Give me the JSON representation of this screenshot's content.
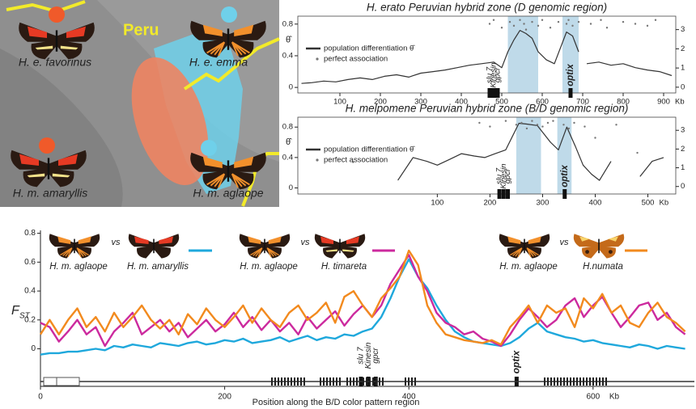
{
  "map": {
    "region_label": "Peru",
    "butterflies": [
      "H. e. favorinus",
      "H. e. emma",
      "H. m. amaryllis",
      "H. m. aglaope"
    ]
  },
  "chart_data": [
    {
      "type": "line",
      "title": "H. erato Peruvian hybrid zone (D genomic region)",
      "y_label": "θ̂",
      "x_unit": "Kb",
      "xlim": [
        -4,
        930
      ],
      "xticks": [
        100,
        200,
        300,
        400,
        500,
        600,
        700,
        800,
        900
      ],
      "ylim": [
        -0.07,
        0.9
      ],
      "yticks": [
        0,
        0.4,
        0.8
      ],
      "y2lim": [
        -0.3,
        3.7
      ],
      "y2ticks": [
        0,
        1,
        2,
        3
      ],
      "shaded_regions": [
        [
          515,
          590
        ],
        [
          650,
          690
        ]
      ],
      "shade_color": "#a9cde1",
      "genes": [
        {
          "label": "slu 7",
          "x": 470,
          "color": "#222222"
        },
        {
          "label": "Kinesin",
          "x": 480,
          "color": "#c2185b"
        },
        {
          "label": "gpcr",
          "x": 490,
          "color": "#222222"
        },
        {
          "label": "optix",
          "x": 670,
          "color": "#e0202c"
        }
      ],
      "series": [
        {
          "name": "population differentiation θ̂",
          "color": "#333333",
          "x": [
            5,
            30,
            60,
            90,
            120,
            150,
            180,
            210,
            240,
            270,
            300,
            330,
            360,
            390,
            420,
            450,
            480,
            500,
            515,
            530,
            545,
            560,
            575,
            590,
            610,
            630,
            645,
            660,
            675,
            690,
            700,
            710,
            740,
            770,
            800,
            830,
            860,
            890,
            920
          ],
          "values": [
            0.05,
            0.06,
            0.08,
            0.07,
            0.1,
            0.12,
            0.1,
            0.14,
            0.16,
            0.13,
            0.18,
            0.2,
            0.22,
            0.25,
            0.28,
            0.3,
            0.32,
            0.25,
            0.45,
            0.6,
            0.72,
            0.68,
            0.62,
            0.45,
            0.35,
            0.3,
            0.5,
            0.7,
            0.65,
            0.45,
            null,
            0.3,
            0.32,
            0.28,
            0.3,
            0.25,
            0.22,
            0.2,
            0.15
          ]
        },
        {
          "name": "perfect association",
          "color": "#777777",
          "type": "scatter",
          "axis": "y2",
          "x": [
            470,
            480,
            500,
            520,
            530,
            545,
            555,
            560,
            575,
            590,
            600,
            620,
            640,
            660,
            665,
            675,
            690,
            720,
            745,
            760,
            800,
            830,
            860,
            880
          ],
          "values": [
            3.3,
            3.5,
            3.1,
            3.4,
            3.2,
            3.5,
            3.3,
            3.0,
            3.4,
            3.2,
            3.5,
            3.1,
            3.4,
            3.3,
            3.5,
            3.2,
            3.4,
            3.3,
            3.5,
            3.1,
            3.4,
            3.3,
            3.2,
            3.5
          ]
        }
      ]
    },
    {
      "type": "line",
      "title": "H. melpomene Peruvian hybrid zone (B/D genomic region)",
      "y_label": "θ̂",
      "x_unit": "Kb",
      "xlim": [
        -165,
        553
      ],
      "xticks": [
        100,
        200,
        300,
        400,
        500
      ],
      "ylim": [
        -0.08,
        0.93
      ],
      "yticks": [
        0,
        0.4,
        0.8
      ],
      "y2lim": [
        -0.4,
        3.7
      ],
      "y2ticks": [
        0,
        1,
        2,
        3
      ],
      "shaded_regions": [
        [
          250,
          297
        ],
        [
          328,
          355
        ]
      ],
      "shade_color": "#a9cde1",
      "genes": [
        {
          "label": "slu 7",
          "x": 218,
          "color": "#222222"
        },
        {
          "label": "Kinesin",
          "x": 226,
          "color": "#c2185b"
        },
        {
          "label": "gpcr",
          "x": 234,
          "color": "#222222"
        },
        {
          "label": "optix",
          "x": 342,
          "color": "#e0202c"
        }
      ],
      "series": [
        {
          "name": "population differentiation θ̂",
          "color": "#333333",
          "x": [
            25,
            54,
            80,
            100,
            125,
            146,
            170,
            190,
            210,
            230,
            255,
            270,
            290,
            315,
            330,
            346,
            362,
            377,
            393,
            408,
            430,
            460,
            485,
            508,
            530
          ],
          "values": [
            0.1,
            0.4,
            0.35,
            0.3,
            0.38,
            0.45,
            0.42,
            0.4,
            0.45,
            0.5,
            0.85,
            0.84,
            0.82,
            0.6,
            0.5,
            0.8,
            0.55,
            0.3,
            0.18,
            0.1,
            0.35,
            null,
            0.15,
            0.35,
            0.4
          ]
        },
        {
          "name": "perfect association",
          "color": "#777777",
          "type": "scatter",
          "axis": "y2",
          "x": [
            -60,
            180,
            200,
            230,
            250,
            260,
            270,
            280,
            290,
            300,
            310,
            320,
            340,
            350,
            360,
            380,
            400,
            440,
            480
          ],
          "values": [
            1.3,
            3.4,
            3.2,
            3.5,
            3.3,
            3.4,
            3.1,
            3.5,
            3.3,
            3.2,
            3.4,
            3.5,
            3.3,
            3.1,
            3.4,
            3.2,
            2.6,
            3.3,
            1.8
          ]
        }
      ]
    },
    {
      "type": "line",
      "y_label": {
        "main": "F",
        "sub": "ST"
      },
      "x_label": "Position along the B/D color pattern region",
      "x_unit": "Kb",
      "xlim": [
        0,
        710
      ],
      "xticks": [
        0,
        200,
        400,
        600
      ],
      "ylim": [
        -0.26,
        0.82
      ],
      "yticks": [
        0,
        0.2,
        0.4,
        0.6,
        0.8
      ],
      "reference": "H. m. aglaope",
      "vs_label": "vs",
      "genes": [
        {
          "label": "slu 7",
          "x": 348,
          "color": "#222222"
        },
        {
          "label": "Kinesin",
          "x": 356,
          "color": "#c2185b"
        },
        {
          "label": "gpcr",
          "x": 364,
          "color": "#222222"
        },
        {
          "label": "optix",
          "x": 517,
          "color": "#e0202c"
        }
      ],
      "x": [
        0,
        10,
        20,
        30,
        40,
        50,
        60,
        70,
        80,
        90,
        100,
        110,
        120,
        130,
        140,
        150,
        160,
        170,
        180,
        190,
        200,
        210,
        220,
        230,
        240,
        250,
        260,
        270,
        280,
        290,
        300,
        310,
        320,
        330,
        340,
        350,
        360,
        370,
        380,
        390,
        400,
        410,
        420,
        430,
        440,
        450,
        460,
        470,
        480,
        490,
        500,
        510,
        520,
        530,
        540,
        550,
        560,
        570,
        580,
        590,
        600,
        610,
        620,
        630,
        640,
        650,
        660,
        670,
        680,
        690,
        700
      ],
      "series": [
        {
          "name": "H. m. amaryllis",
          "color": "#1fa8dc",
          "values": [
            -0.04,
            -0.03,
            -0.03,
            -0.02,
            -0.02,
            -0.01,
            0,
            -0.01,
            0.02,
            0.01,
            0.03,
            0.02,
            0.01,
            0.04,
            0.03,
            0.02,
            0.04,
            0.05,
            0.03,
            0.04,
            0.06,
            0.05,
            0.07,
            0.04,
            0.05,
            0.06,
            0.08,
            0.05,
            0.07,
            0.09,
            0.06,
            0.08,
            0.07,
            0.1,
            0.09,
            0.12,
            0.14,
            0.22,
            0.35,
            0.5,
            0.62,
            0.5,
            0.42,
            0.3,
            0.2,
            0.12,
            0.08,
            0.05,
            0.04,
            0.03,
            0.02,
            0.04,
            0.08,
            0.14,
            0.18,
            0.12,
            0.1,
            0.08,
            0.07,
            0.05,
            0.06,
            0.04,
            0.03,
            0.02,
            0.01,
            0.03,
            0.02,
            0.0,
            0.02,
            0.01,
            0.0
          ]
        },
        {
          "name": "H. timareta",
          "color": "#cc2a9e",
          "values": [
            0.18,
            0.15,
            0.05,
            0.12,
            0.2,
            0.1,
            0.15,
            0.02,
            0.12,
            0.18,
            0.25,
            0.1,
            0.15,
            0.2,
            0.12,
            0.18,
            0.08,
            0.14,
            0.2,
            0.12,
            0.17,
            0.25,
            0.15,
            0.22,
            0.13,
            0.2,
            0.12,
            0.18,
            0.1,
            0.22,
            0.14,
            0.2,
            0.26,
            0.16,
            0.24,
            0.3,
            0.22,
            0.3,
            0.45,
            0.55,
            0.65,
            0.5,
            0.4,
            0.25,
            0.18,
            0.15,
            0.1,
            0.12,
            0.07,
            0.05,
            0.02,
            0.1,
            0.2,
            0.28,
            0.22,
            0.15,
            0.2,
            0.3,
            0.35,
            0.22,
            0.3,
            0.36,
            0.25,
            0.15,
            0.22,
            0.3,
            0.32,
            0.2,
            0.25,
            0.15,
            0.1
          ]
        },
        {
          "name": "H.numata",
          "color": "#f28a1e",
          "values": [
            0.1,
            0.2,
            0.1,
            0.2,
            0.28,
            0.15,
            0.22,
            0.12,
            0.25,
            0.15,
            0.22,
            0.3,
            0.2,
            0.14,
            0.2,
            0.1,
            0.24,
            0.17,
            0.28,
            0.2,
            0.15,
            0.22,
            0.3,
            0.18,
            0.28,
            0.2,
            0.15,
            0.25,
            0.3,
            0.2,
            0.25,
            0.32,
            0.18,
            0.36,
            0.4,
            0.3,
            0.22,
            0.35,
            0.42,
            0.5,
            0.68,
            0.58,
            0.3,
            0.18,
            0.1,
            0.08,
            0.06,
            0.05,
            0.04,
            0.06,
            0.03,
            0.15,
            0.22,
            0.3,
            0.18,
            0.3,
            0.25,
            0.28,
            0.15,
            0.35,
            0.28,
            0.38,
            0.25,
            0.3,
            0.18,
            0.15,
            0.25,
            0.32,
            0.22,
            0.18,
            0.12
          ]
        }
      ]
    }
  ]
}
